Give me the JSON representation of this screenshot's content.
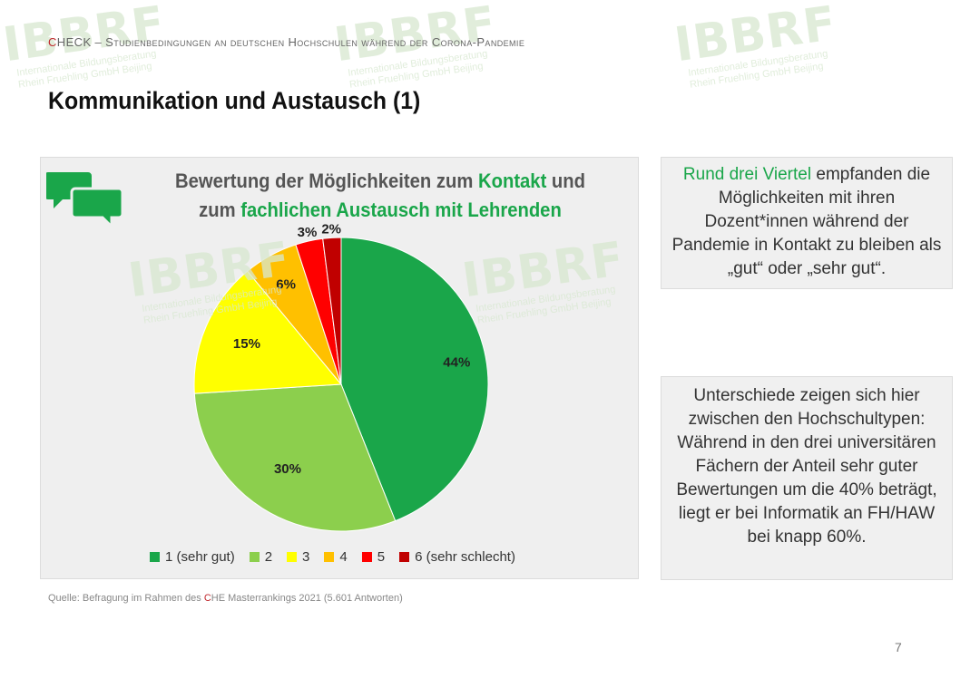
{
  "header": {
    "check_c": "C",
    "check_rest": "HECK",
    "subtitle": " – Studienbedingungen an deutschen Hochschulen während der Corona-Pandemie"
  },
  "page_title": "Kommunikation und Austausch (1)",
  "watermark": {
    "logo": "IBBRF",
    "line1": "Internationale Bildungsberatung",
    "line2": "Rhein Fruehling GmbH Beijing"
  },
  "chart_title": {
    "line1_a": "Bewertung der Möglichkeiten zum ",
    "line1_hl": "Kontakt",
    "line1_b": " und",
    "line2_a": "zum ",
    "line2_hl": "fachlichen Austausch mit Lehrenden"
  },
  "chart_data": {
    "type": "pie",
    "title": "Bewertung der Möglichkeiten zum Kontakt und zum fachlichen Austausch mit Lehrenden",
    "categories": [
      "1 (sehr gut)",
      "2",
      "3",
      "4",
      "5",
      "6 (sehr schlecht)"
    ],
    "values": [
      44,
      30,
      15,
      6,
      3,
      2
    ],
    "labels": [
      "44%",
      "30%",
      "15%",
      "6%",
      "3%",
      "2%"
    ],
    "colors": [
      "#1aa64a",
      "#8ccf4d",
      "#ffff00",
      "#ffc000",
      "#ff0000",
      "#c00000"
    ],
    "legend": "bottom"
  },
  "side1": {
    "hl": "Rund drei Viertel",
    "text": " empfanden die Möglichkeiten mit ihren Dozent*innen während der Pandemie in Kontakt zu bleiben als  „gut“ oder „sehr gut“."
  },
  "side2": {
    "text": "Unterschiede zeigen sich hier zwischen den Hochschultypen: Während in den drei universitären Fächern der Anteil sehr guter Bewertungen um die 40% beträgt, liegt er bei Informatik an FH/HAW bei knapp 60%."
  },
  "source": {
    "pre": "Quelle: Befragung im Rahmen des ",
    "c": "C",
    "post": "HE Masterrankings 2021 (5.601 Antworten)"
  },
  "page_number": "7",
  "icons": {
    "chat": "chat-bubbles-icon"
  }
}
